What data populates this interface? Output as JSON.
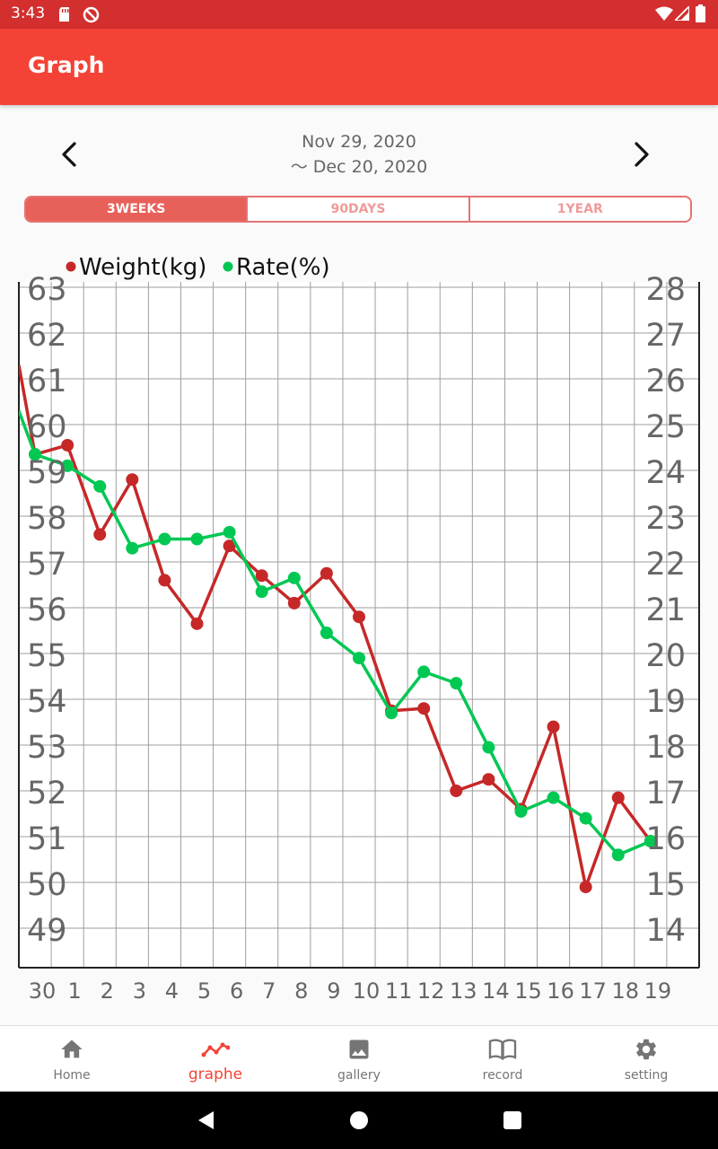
{
  "status_bar": {
    "time": "3:43"
  },
  "app_bar": {
    "title": "Graph"
  },
  "date_range": {
    "start": "Nov 29, 2020",
    "end": "〜 Dec 20, 2020"
  },
  "range_tabs": [
    {
      "label": "3WEEKS",
      "active": true
    },
    {
      "label": "90DAYS",
      "active": false
    },
    {
      "label": "1YEAR",
      "active": false
    }
  ],
  "bottom_nav": [
    {
      "label": "Home",
      "icon": "home-icon",
      "active": false
    },
    {
      "label": "graphe",
      "icon": "graph-icon",
      "active": true
    },
    {
      "label": "gallery",
      "icon": "image-icon",
      "active": false
    },
    {
      "label": "record",
      "icon": "book-icon",
      "active": false
    },
    {
      "label": "setting",
      "icon": "gear-icon",
      "active": false
    }
  ],
  "colors": {
    "weight": "#c62828",
    "rate": "#00c853",
    "accent": "#f44336"
  },
  "chart_data": {
    "type": "line",
    "categories": [
      "30",
      "1",
      "2",
      "3",
      "4",
      "5",
      "6",
      "7",
      "8",
      "9",
      "10",
      "11",
      "12",
      "13",
      "14",
      "15",
      "16",
      "17",
      "18",
      "19"
    ],
    "left_axis": {
      "min": 49,
      "max": 63,
      "ticks": [
        63,
        62,
        61,
        60,
        59,
        58,
        57,
        56,
        55,
        54,
        53,
        52,
        51,
        50,
        49
      ]
    },
    "right_axis": {
      "min": 14,
      "max": 28,
      "ticks": [
        28,
        27,
        26,
        25,
        24,
        23,
        22,
        21,
        20,
        19,
        18,
        17,
        16,
        15,
        14
      ]
    },
    "legend": [
      "Weight(kg)",
      "Rate(%)"
    ],
    "grid": true,
    "series": [
      {
        "name": "Weight(kg)",
        "axis": "left",
        "color": "#c62828",
        "entry": 61.3,
        "x": [
          0.5,
          1.5,
          2.5,
          3.5,
          4.5,
          5.5,
          6.5,
          7.5,
          8.5,
          9.5,
          10.5,
          11.5,
          12.5,
          13.5,
          14.5,
          15.5,
          16.5,
          17.5,
          18.5,
          19.5
        ],
        "values": [
          59.35,
          59.55,
          57.6,
          58.8,
          56.6,
          55.65,
          57.35,
          56.7,
          56.1,
          56.75,
          55.8,
          53.75,
          53.8,
          52.0,
          52.25,
          51.6,
          53.4,
          49.9,
          51.85,
          50.9
        ]
      },
      {
        "name": "Rate(%)",
        "axis": "right",
        "color": "#00c853",
        "entry": 25.3,
        "x": [
          0.5,
          1.5,
          2.5,
          3.5,
          4.5,
          5.5,
          6.5,
          7.5,
          8.5,
          9.5,
          10.5,
          11.5,
          12.5,
          13.5,
          14.5,
          15.5,
          16.5,
          17.5,
          18.5,
          19.5
        ],
        "values": [
          24.35,
          24.1,
          23.65,
          22.3,
          22.5,
          22.5,
          22.65,
          21.35,
          21.65,
          20.45,
          19.9,
          18.7,
          19.6,
          19.35,
          17.95,
          16.55,
          16.85,
          16.4,
          15.6,
          15.9
        ]
      }
    ]
  }
}
